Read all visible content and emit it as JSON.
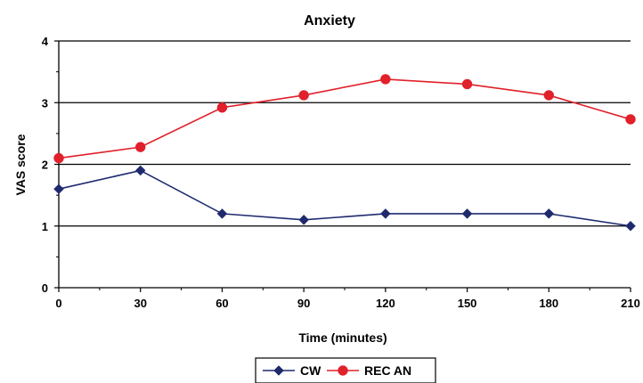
{
  "chart_data": {
    "type": "line",
    "title": "Anxiety",
    "xlabel": "Time (minutes)",
    "ylabel": "VAS score",
    "x": [
      0,
      30,
      60,
      90,
      120,
      150,
      180,
      210
    ],
    "xlim": [
      0,
      210
    ],
    "ylim": [
      0,
      4
    ],
    "yticks": [
      0,
      1,
      2,
      3,
      4
    ],
    "grid": "horizontal",
    "legend": "bottom",
    "series": [
      {
        "name": "CW",
        "color": "#1f2a6e",
        "marker": "diamond",
        "values": [
          1.6,
          1.9,
          1.2,
          1.1,
          1.2,
          1.2,
          1.2,
          1.0
        ]
      },
      {
        "name": "REC AN",
        "color": "#e0202a",
        "marker": "circle",
        "values": [
          2.1,
          2.28,
          2.92,
          3.12,
          3.38,
          3.3,
          3.12,
          2.73
        ]
      }
    ]
  }
}
